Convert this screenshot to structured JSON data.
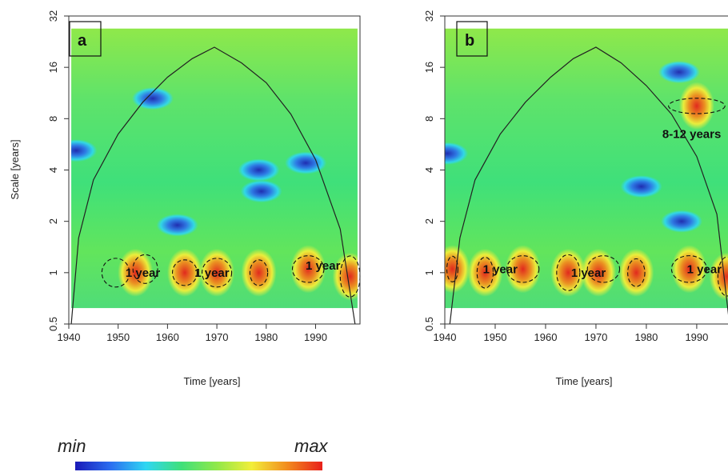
{
  "chart_data": [
    {
      "type": "heatmap",
      "panel_label": "a",
      "xlabel": "Time [years]",
      "ylabel": "Scale [years]",
      "xlim": [
        1940,
        1999
      ],
      "ylim": [
        0.5,
        32
      ],
      "y_scale": "log2",
      "x_ticks": [
        1940,
        1950,
        1960,
        1970,
        1980,
        1990
      ],
      "y_ticks": [
        0.5,
        1,
        2,
        4,
        8,
        16,
        32
      ],
      "data_extent": {
        "x": [
          1940.5,
          1998.5
        ],
        "scale": [
          0.62,
          27
        ]
      },
      "cone_of_influence": [
        [
          1940.5,
          0.5
        ],
        [
          1942,
          1.6
        ],
        [
          1945,
          3.5
        ],
        [
          1950,
          6.5
        ],
        [
          1955,
          10
        ],
        [
          1960,
          14
        ],
        [
          1965,
          18
        ],
        [
          1969.5,
          21
        ],
        [
          1975,
          17
        ],
        [
          1980,
          13
        ],
        [
          1985,
          8.5
        ],
        [
          1990,
          4.6
        ],
        [
          1995,
          1.8
        ],
        [
          1998,
          0.5
        ]
      ],
      "features": [
        {
          "kind": "high",
          "x": 1953.5,
          "scale": 1.0
        },
        {
          "kind": "high",
          "x": 1963.5,
          "scale": 1.0
        },
        {
          "kind": "high",
          "x": 1970.0,
          "scale": 1.0
        },
        {
          "kind": "high",
          "x": 1978.5,
          "scale": 1.0
        },
        {
          "kind": "high",
          "x": 1988.5,
          "scale": 1.05
        },
        {
          "kind": "high",
          "x": 1997.0,
          "scale": 0.95
        },
        {
          "kind": "low",
          "x": 1941.5,
          "scale": 5.2
        },
        {
          "kind": "low",
          "x": 1957.0,
          "scale": 10.5
        },
        {
          "kind": "low",
          "x": 1978.5,
          "scale": 4.0
        },
        {
          "kind": "low",
          "x": 1979.0,
          "scale": 3.0
        },
        {
          "kind": "low",
          "x": 1962.0,
          "scale": 1.9
        },
        {
          "kind": "low",
          "x": 1988.0,
          "scale": 4.4
        }
      ],
      "significance_contours": [
        {
          "x": 1949.5,
          "scale": 1.0,
          "rx": 2.8,
          "ry": 0.28
        },
        {
          "x": 1955.5,
          "scale": 1.05,
          "rx": 2.5,
          "ry": 0.28
        },
        {
          "x": 1963.5,
          "scale": 1.0,
          "rx": 2.5,
          "ry": 0.25
        },
        {
          "x": 1970.0,
          "scale": 1.0,
          "rx": 3.0,
          "ry": 0.28
        },
        {
          "x": 1978.5,
          "scale": 1.0,
          "rx": 1.8,
          "ry": 0.25
        },
        {
          "x": 1988.5,
          "scale": 1.05,
          "rx": 3.2,
          "ry": 0.26
        },
        {
          "x": 1997.0,
          "scale": 0.95,
          "rx": 2.0,
          "ry": 0.4
        }
      ],
      "annotations": [
        {
          "text": "1 year",
          "x": 1955.0,
          "scale": 1.0
        },
        {
          "text": "1 year",
          "x": 1969.0,
          "scale": 1.0
        },
        {
          "text": "1 year",
          "x": 1991.5,
          "scale": 1.1
        }
      ]
    },
    {
      "type": "heatmap",
      "panel_label": "b",
      "xlabel": "Time [years]",
      "ylabel": "",
      "xlim": [
        1940,
        1997
      ],
      "ylim": [
        0.5,
        32
      ],
      "y_scale": "log2",
      "x_ticks": [
        1940,
        1950,
        1960,
        1970,
        1980,
        1990
      ],
      "y_ticks": [
        0.5,
        1,
        2,
        4,
        8,
        16,
        32
      ],
      "data_extent": {
        "x": [
          1940.0,
          1997.0
        ],
        "scale": [
          0.62,
          27
        ]
      },
      "cone_of_influence": [
        [
          1941,
          0.5
        ],
        [
          1943,
          1.6
        ],
        [
          1946,
          3.5
        ],
        [
          1951,
          6.5
        ],
        [
          1956,
          10
        ],
        [
          1961,
          14
        ],
        [
          1965.5,
          18
        ],
        [
          1970,
          21
        ],
        [
          1975,
          17
        ],
        [
          1980,
          12.5
        ],
        [
          1985,
          8.5
        ],
        [
          1990,
          4.8
        ],
        [
          1994,
          2.2
        ],
        [
          1996.5,
          0.5
        ]
      ],
      "features": [
        {
          "kind": "high",
          "x": 1941.5,
          "scale": 1.05
        },
        {
          "kind": "high",
          "x": 1948.0,
          "scale": 1.0
        },
        {
          "kind": "high",
          "x": 1955.5,
          "scale": 1.05
        },
        {
          "kind": "high",
          "x": 1964.5,
          "scale": 1.0
        },
        {
          "kind": "high",
          "x": 1970.5,
          "scale": 1.0
        },
        {
          "kind": "high",
          "x": 1978.0,
          "scale": 1.0
        },
        {
          "kind": "high",
          "x": 1988.5,
          "scale": 1.05
        },
        {
          "kind": "high",
          "x": 1996.0,
          "scale": 0.95
        },
        {
          "kind": "high",
          "x": 1990.0,
          "scale": 9.5
        },
        {
          "kind": "low",
          "x": 1940.5,
          "scale": 5.0
        },
        {
          "kind": "low",
          "x": 1986.5,
          "scale": 15.0
        },
        {
          "kind": "low",
          "x": 1979.0,
          "scale": 3.2
        },
        {
          "kind": "low",
          "x": 1987.0,
          "scale": 2.0
        }
      ],
      "significance_contours": [
        {
          "x": 1941.5,
          "scale": 1.05,
          "rx": 1.1,
          "ry": 0.25
        },
        {
          "x": 1948.0,
          "scale": 1.0,
          "rx": 1.6,
          "ry": 0.3
        },
        {
          "x": 1955.5,
          "scale": 1.05,
          "rx": 3.2,
          "ry": 0.26
        },
        {
          "x": 1964.5,
          "scale": 1.0,
          "rx": 2.3,
          "ry": 0.35
        },
        {
          "x": 1971.5,
          "scale": 1.05,
          "rx": 3.2,
          "ry": 0.26
        },
        {
          "x": 1978.0,
          "scale": 1.0,
          "rx": 1.7,
          "ry": 0.27
        },
        {
          "x": 1988.5,
          "scale": 1.05,
          "rx": 3.5,
          "ry": 0.26
        },
        {
          "x": 1996.0,
          "scale": 0.95,
          "rx": 1.8,
          "ry": 0.38
        },
        {
          "x": 1990.0,
          "scale": 9.5,
          "rx": 5.6,
          "ry": 0.15
        }
      ],
      "annotations": [
        {
          "text": "1 year",
          "x": 1951.0,
          "scale": 1.05
        },
        {
          "text": "1 year",
          "x": 1968.5,
          "scale": 1.0
        },
        {
          "text": "1 year",
          "x": 1991.5,
          "scale": 1.05
        },
        {
          "text": "8-12 years",
          "x": 1989.0,
          "scale": 6.5
        }
      ]
    }
  ],
  "legend": {
    "min_label": "min",
    "max_label": "max",
    "colors": [
      "#1a1ab8",
      "#2b6ef0",
      "#2fd6f2",
      "#3fe07a",
      "#8fe84a",
      "#f2ee3a",
      "#f28c1e",
      "#e8201a"
    ]
  }
}
